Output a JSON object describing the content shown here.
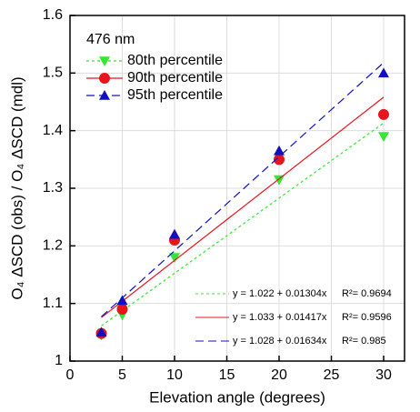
{
  "chart_data": {
    "type": "scatter",
    "annotation": "476 nm",
    "x_label": "Elevation angle (degrees)",
    "y_label": "O₄ ΔSCD (obs) / O₄ ΔSCD (mdl)",
    "x": [
      3,
      5,
      10,
      20,
      30
    ],
    "xlim": [
      0,
      32
    ],
    "xticks": [
      0,
      5,
      10,
      15,
      20,
      25,
      30
    ],
    "ylim": [
      1,
      1.6
    ],
    "yticks": [
      1,
      {
        "value": 1.1,
        "label": "1.1"
      },
      1.2,
      1.3,
      1.4,
      1.5,
      {
        "value": 1.6,
        "label": "1.6"
      }
    ],
    "grid": true,
    "legend": "upper left",
    "series": [
      {
        "name": "80th percentile",
        "color": "#33e833",
        "marker": "triangle-down",
        "dash": "3,3",
        "values": [
          1.045,
          1.08,
          1.18,
          1.315,
          1.39
        ],
        "fit": {
          "intercept": 1.022,
          "slope": 0.01304,
          "label": "y = 1.022 + 0.01304x",
          "r2_label": "R²= 0.9694"
        }
      },
      {
        "name": "90th percentile",
        "color": "#e8141c",
        "marker": "circle",
        "dash": "none",
        "values": [
          1.048,
          1.09,
          1.21,
          1.35,
          1.428
        ],
        "fit": {
          "intercept": 1.033,
          "slope": 0.01417,
          "label": "y = 1.033 + 0.01417x",
          "r2_label": "R²= 0.9596"
        }
      },
      {
        "name": "95th percentile",
        "color": "#1010c0",
        "marker": "triangle-up",
        "dash": "9,5",
        "values": [
          1.05,
          1.105,
          1.22,
          1.365,
          1.5
        ],
        "fit": {
          "intercept": 1.028,
          "slope": 0.01634,
          "label": "y = 1.028 + 0.01634x",
          "r2_label": "R²= 0.985"
        }
      }
    ]
  }
}
